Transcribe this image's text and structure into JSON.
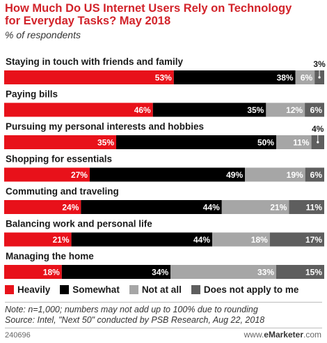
{
  "title": "How Much Do US Internet Users Rely on Technology for Everyday Tasks? May 2018",
  "subtitle": "% of respondents",
  "colors": {
    "heavily": "#e8111a",
    "somewhat": "#000000",
    "not_at_all": "#a6a6a6",
    "does_not_apply": "#5e5e5e",
    "title": "#d2232a"
  },
  "chart_data": {
    "type": "bar",
    "orientation": "horizontal-stacked",
    "categories": [
      "Staying in touch with friends and family",
      "Paying bills",
      "Pursuing my personal interests and hobbies",
      "Shopping for essentials",
      "Commuting and traveling",
      "Balancing work and personal life",
      "Managing the home"
    ],
    "series": [
      {
        "name": "Heavily",
        "values": [
          53,
          46,
          35,
          27,
          24,
          21,
          18
        ]
      },
      {
        "name": "Somewhat",
        "values": [
          38,
          35,
          50,
          49,
          44,
          44,
          34
        ]
      },
      {
        "name": "Not at all",
        "values": [
          6,
          12,
          11,
          19,
          21,
          18,
          33
        ]
      },
      {
        "name": "Does not apply to me",
        "values": [
          3,
          6,
          4,
          6,
          11,
          17,
          15
        ]
      }
    ],
    "value_suffix": "%",
    "legend_position": "bottom",
    "grid": false
  },
  "legend": {
    "heavily": "Heavily",
    "somewhat": "Somewhat",
    "not_at_all": "Not at all",
    "does_not_apply": "Does not apply to me"
  },
  "note": "Note: n=1,000; numbers may not add up to 100% due to rounding",
  "source": "Source: Intel, \"Next 50\" conducted by PSB Research, Aug 22, 2018",
  "chart_id": "240696",
  "brand": {
    "prefix": "www.",
    "name": "eMarketer",
    "suffix": ".com"
  }
}
